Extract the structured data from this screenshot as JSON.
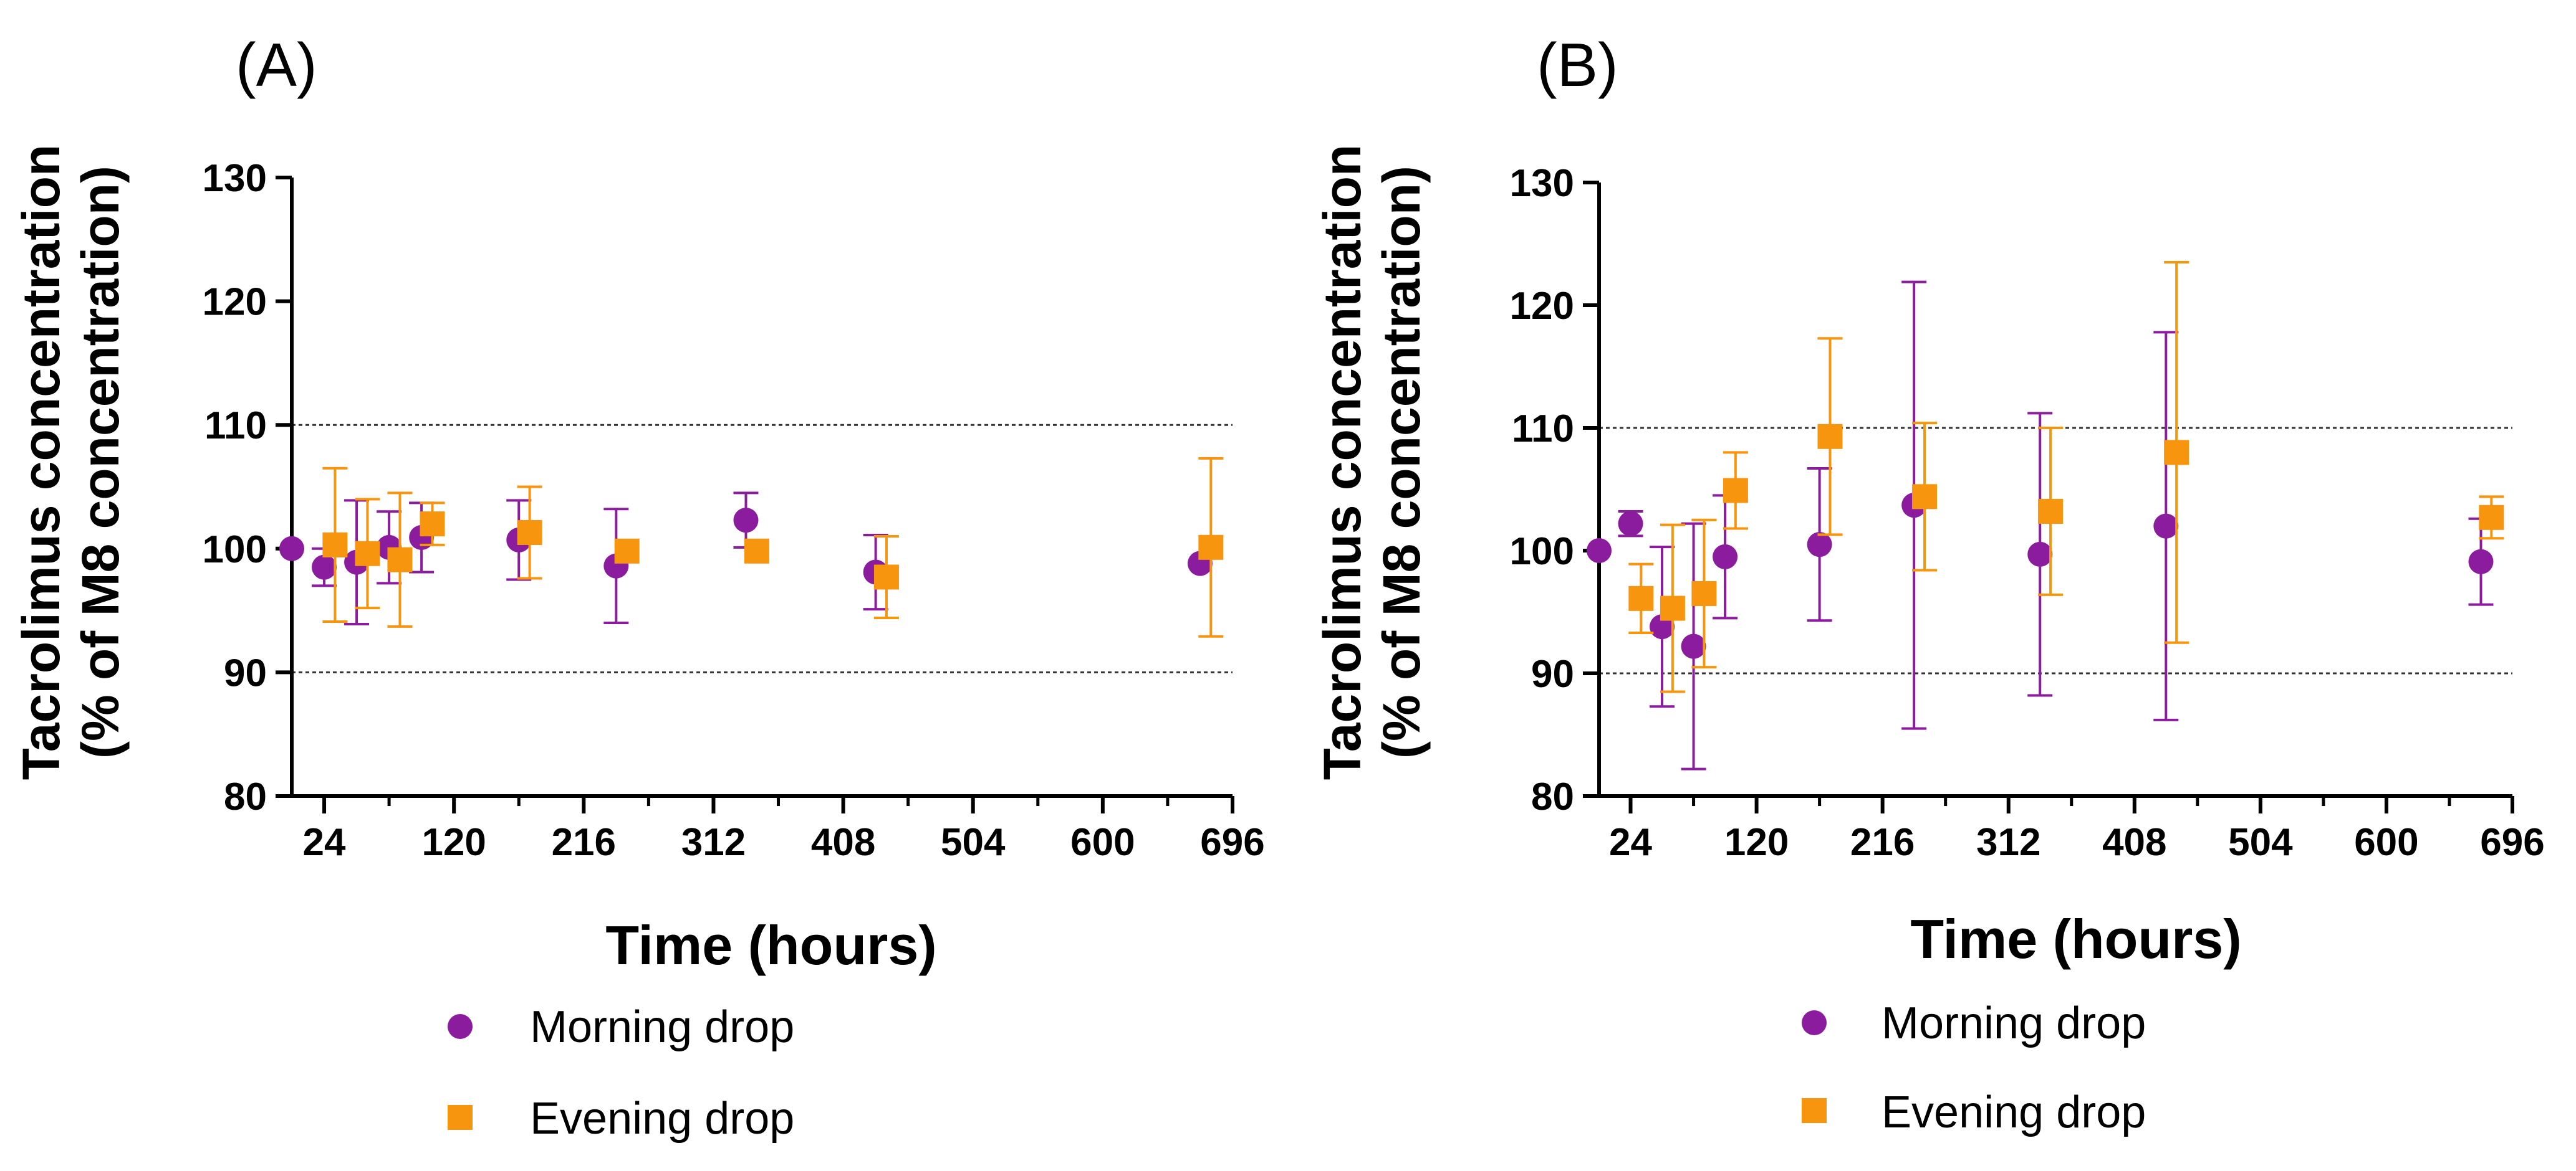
{
  "colors": {
    "morning": "#8b1c9e",
    "evening": "#f7950f",
    "axis": "#000000",
    "reference": "#333333"
  },
  "chart_data": [
    {
      "type": "scatter",
      "panel_label": "(A)",
      "xlabel": "Time (hours)",
      "ylabel_line1": "Tacrolimus concentration",
      "ylabel_line2": "(% of M8 concentration)",
      "xlim": [
        0,
        696
      ],
      "ylim": [
        80,
        130
      ],
      "xticks": [
        24,
        120,
        216,
        312,
        408,
        504,
        600,
        696
      ],
      "yticks": [
        80,
        90,
        100,
        110,
        120,
        130
      ],
      "reference_lines": [
        90,
        110
      ],
      "legend": {
        "placement": "below",
        "entries": [
          "Morning drop",
          "Evening drop"
        ]
      },
      "series": [
        {
          "name": "Morning drop",
          "marker": "circle",
          "points": [
            {
              "x": 0,
              "y": 100,
              "err": 0
            },
            {
              "x": 24,
              "y": 98.5,
              "err": 1.5
            },
            {
              "x": 48,
              "y": 98.9,
              "err": 5.0
            },
            {
              "x": 72,
              "y": 100.1,
              "err": 2.9
            },
            {
              "x": 96,
              "y": 100.9,
              "err": 2.8
            },
            {
              "x": 168,
              "y": 100.7,
              "err": 3.2
            },
            {
              "x": 240,
              "y": 98.6,
              "err": 4.6
            },
            {
              "x": 336,
              "y": 102.3,
              "err": 2.2
            },
            {
              "x": 432,
              "y": 98.1,
              "err": 3.0
            },
            {
              "x": 672,
              "y": 98.8,
              "err": 0
            }
          ]
        },
        {
          "name": "Evening drop",
          "marker": "square",
          "points": [
            {
              "x": 32,
              "y": 100.3,
              "err": 6.2
            },
            {
              "x": 56,
              "y": 99.6,
              "err": 4.4
            },
            {
              "x": 80,
              "y": 99.1,
              "err": 5.4
            },
            {
              "x": 104,
              "y": 102.0,
              "err": 1.7
            },
            {
              "x": 176,
              "y": 101.3,
              "err": 3.7
            },
            {
              "x": 248,
              "y": 99.8,
              "err": 0
            },
            {
              "x": 344,
              "y": 99.8,
              "err": 0
            },
            {
              "x": 440,
              "y": 97.7,
              "err": 3.3
            },
            {
              "x": 680,
              "y": 100.1,
              "err": 7.2
            }
          ]
        }
      ]
    },
    {
      "type": "scatter",
      "panel_label": "(B)",
      "xlabel": "Time (hours)",
      "ylabel_line1": "Tacrolimus concentration",
      "ylabel_line2": "(% of M8 concentration)",
      "xlim": [
        0,
        696
      ],
      "ylim": [
        80,
        130
      ],
      "xticks": [
        24,
        120,
        216,
        312,
        408,
        504,
        600,
        696
      ],
      "yticks": [
        80,
        90,
        100,
        110,
        120,
        130
      ],
      "reference_lines": [
        90,
        110
      ],
      "legend": {
        "placement": "below",
        "entries": [
          "Morning drop",
          "Evening drop"
        ]
      },
      "series": [
        {
          "name": "Morning drop",
          "marker": "circle",
          "points": [
            {
              "x": 0,
              "y": 100,
              "err": 0
            },
            {
              "x": 24,
              "y": 102.2,
              "err": 1.0
            },
            {
              "x": 48,
              "y": 93.8,
              "err": 6.5
            },
            {
              "x": 72,
              "y": 92.2,
              "err": 10.0
            },
            {
              "x": 96,
              "y": 99.5,
              "err": 5.0
            },
            {
              "x": 168,
              "y": 100.5,
              "err": 6.2
            },
            {
              "x": 240,
              "y": 103.7,
              "err": 18.2
            },
            {
              "x": 336,
              "y": 99.7,
              "err": 11.5
            },
            {
              "x": 432,
              "y": 102.0,
              "err": 15.8
            },
            {
              "x": 672,
              "y": 99.1,
              "err": 3.5
            }
          ]
        },
        {
          "name": "Evening drop",
          "marker": "square",
          "points": [
            {
              "x": 32,
              "y": 96.1,
              "err": 2.8
            },
            {
              "x": 56,
              "y": 95.3,
              "err": 6.8
            },
            {
              "x": 80,
              "y": 96.5,
              "err": 6.0
            },
            {
              "x": 104,
              "y": 104.9,
              "err": 3.1
            },
            {
              "x": 176,
              "y": 109.3,
              "err": 8.0
            },
            {
              "x": 248,
              "y": 104.4,
              "err": 6.0
            },
            {
              "x": 344,
              "y": 103.2,
              "err": 6.8
            },
            {
              "x": 440,
              "y": 108.0,
              "err": 15.5
            },
            {
              "x": 680,
              "y": 102.7,
              "err": 1.7
            }
          ]
        }
      ]
    }
  ]
}
